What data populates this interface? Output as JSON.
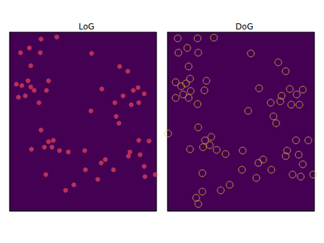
{
  "chart_data": [
    {
      "type": "scatter",
      "title": "LoG",
      "color": "#e0405a",
      "marker": "dot",
      "xlim": [
        0,
        215
      ],
      "ylim": [
        0,
        261
      ],
      "xticks": [],
      "yticks": [],
      "tick_labels": false,
      "x": [
        16,
        29,
        45,
        31,
        69,
        46,
        10,
        18,
        27,
        31,
        36,
        23,
        13,
        57,
        54,
        43,
        135,
        161,
        173,
        120,
        166,
        181,
        188,
        197,
        154,
        178,
        189,
        156,
        160,
        119,
        46,
        57,
        64,
        51,
        62,
        32,
        73,
        86,
        110,
        176,
        189,
        204,
        191,
        174,
        197,
        134,
        140,
        152,
        111,
        53,
        94,
        82,
        129,
        198,
        213
      ],
      "y": [
        231,
        238,
        231,
        212,
        254,
        251,
        185,
        183,
        190,
        181,
        176,
        168,
        166,
        190,
        176,
        158,
        178,
        211,
        204,
        230,
        168,
        176,
        180,
        171,
        158,
        155,
        158,
        138,
        128,
        146,
        118,
        101,
        103,
        93,
        93,
        90,
        88,
        86,
        88,
        86,
        103,
        102,
        82,
        80,
        65,
        70,
        75,
        60,
        60,
        53,
        38,
        30,
        46,
        50,
        53
      ]
    },
    {
      "type": "scatter",
      "title": "DoG",
      "color": "#e8c040",
      "marker": "ring",
      "xlim": [
        0,
        215
      ],
      "ylim": [
        0,
        261
      ],
      "xticks": [],
      "yticks": [],
      "tick_labels": false,
      "x": [
        16,
        29,
        45,
        31,
        162,
        173,
        122,
        15,
        44,
        68,
        12,
        20,
        27,
        33,
        23,
        31,
        12,
        34,
        57,
        54,
        44,
        134,
        167,
        179,
        189,
        198,
        165,
        181,
        193,
        151,
        155,
        159,
        118,
        1,
        45,
        55,
        64,
        52,
        62,
        33,
        72,
        85,
        110,
        175,
        188,
        206,
        192,
        173,
        198,
        133,
        140,
        152,
        183,
        109,
        51,
        91,
        78,
        130,
        195,
        213,
        51,
        42,
        45
      ],
      "y": [
        231,
        238,
        231,
        211,
        217,
        204,
        230,
        252,
        252,
        253,
        188,
        182,
        186,
        193,
        170,
        165,
        165,
        175,
        190,
        176,
        156,
        179,
        168,
        178,
        170,
        177,
        160,
        155,
        155,
        158,
        138,
        128,
        146,
        113,
        122,
        103,
        108,
        93,
        96,
        90,
        89,
        83,
        88,
        88,
        103,
        103,
        82,
        80,
        68,
        70,
        75,
        60,
        53,
        60,
        55,
        38,
        30,
        48,
        50,
        53,
        28,
        19,
        10
      ]
    }
  ]
}
